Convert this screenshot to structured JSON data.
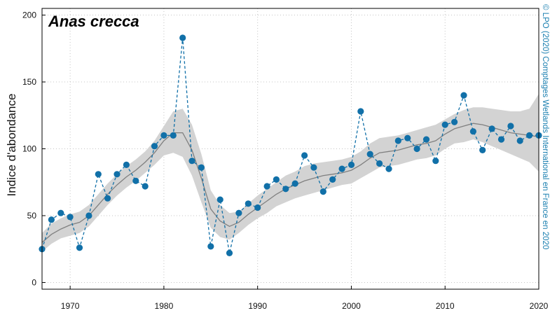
{
  "chart_data": {
    "type": "line",
    "title": "Anas crecca",
    "ylabel": "Indice d'abondance",
    "xlabel": "",
    "credit": "© LPO (2020) Comptages Wetlands International en France en 2020",
    "xlim": [
      1967,
      2020
    ],
    "ylim": [
      -5,
      205
    ],
    "x_ticks": [
      1970,
      1980,
      1990,
      2000,
      2010,
      2020
    ],
    "y_ticks": [
      0,
      50,
      100,
      150,
      200
    ],
    "grid": true,
    "colors": {
      "observed": "#1170a8",
      "smoothed": "#808080",
      "band": "#d3d3d3"
    },
    "series": [
      {
        "kind": "observed",
        "x": [
          1967,
          1968,
          1969,
          1970,
          1971,
          1972,
          1973,
          1974,
          1975,
          1976,
          1977,
          1978,
          1979,
          1980,
          1981,
          1982,
          1983,
          1984,
          1985,
          1986,
          1987,
          1988,
          1989,
          1990,
          1991,
          1992,
          1993,
          1994,
          1995,
          1996,
          1997,
          1998,
          1999,
          2000,
          2001,
          2002,
          2003,
          2004,
          2005,
          2006,
          2007,
          2008,
          2009,
          2010,
          2011,
          2012,
          2013,
          2014,
          2015,
          2016,
          2017,
          2018,
          2019,
          2020
        ],
        "values": [
          25,
          47,
          52,
          49,
          26,
          50,
          81,
          63,
          81,
          88,
          76,
          72,
          102,
          110,
          110,
          183,
          91,
          86,
          27,
          62,
          22,
          52,
          59,
          56,
          72,
          77,
          70,
          74,
          95,
          86,
          68,
          77,
          85,
          88,
          128,
          96,
          89,
          85,
          106,
          108,
          100,
          107,
          91,
          118,
          120,
          140,
          113,
          99,
          115,
          107,
          117,
          106,
          110,
          110
        ]
      },
      {
        "kind": "smoothed",
        "x": [
          1967,
          1968,
          1969,
          1970,
          1971,
          1972,
          1973,
          1974,
          1975,
          1976,
          1977,
          1978,
          1979,
          1980,
          1981,
          1982,
          1983,
          1984,
          1985,
          1986,
          1987,
          1988,
          1989,
          1990,
          1991,
          1992,
          1993,
          1994,
          1995,
          1996,
          1997,
          1998,
          1999,
          2000,
          2001,
          2002,
          2003,
          2004,
          2005,
          2006,
          2007,
          2008,
          2009,
          2010,
          2011,
          2012,
          2013,
          2014,
          2015,
          2016,
          2017,
          2018,
          2019,
          2020
        ],
        "values": [
          30,
          36,
          40,
          43,
          45,
          50,
          58,
          66,
          73,
          79,
          84,
          90,
          97,
          106,
          112,
          112,
          99,
          78,
          55,
          46,
          42,
          45,
          51,
          56,
          61,
          66,
          70,
          73,
          76,
          78,
          80,
          81,
          82,
          84,
          88,
          93,
          97,
          98,
          99,
          101,
          103,
          104,
          106,
          111,
          115,
          117,
          119,
          118,
          116,
          114,
          112,
          111,
          110,
          109
        ],
        "band_upper": [
          37,
          44,
          48,
          51,
          53,
          58,
          66,
          74,
          81,
          87,
          92,
          98,
          106,
          117,
          128,
          130,
          118,
          96,
          69,
          58,
          52,
          53,
          59,
          65,
          70,
          75,
          80,
          83,
          87,
          89,
          90,
          91,
          92,
          94,
          98,
          104,
          108,
          109,
          110,
          112,
          114,
          116,
          118,
          122,
          126,
          129,
          131,
          131,
          130,
          129,
          128,
          128,
          130,
          141
        ],
        "band_lower": [
          23,
          29,
          33,
          35,
          37,
          42,
          50,
          58,
          65,
          71,
          76,
          82,
          88,
          95,
          97,
          94,
          80,
          60,
          41,
          34,
          32,
          37,
          43,
          48,
          52,
          57,
          60,
          63,
          65,
          67,
          69,
          71,
          73,
          74,
          78,
          82,
          86,
          87,
          88,
          90,
          92,
          93,
          95,
          100,
          104,
          105,
          107,
          105,
          102,
          99,
          96,
          93,
          90,
          83
        ]
      }
    ]
  }
}
